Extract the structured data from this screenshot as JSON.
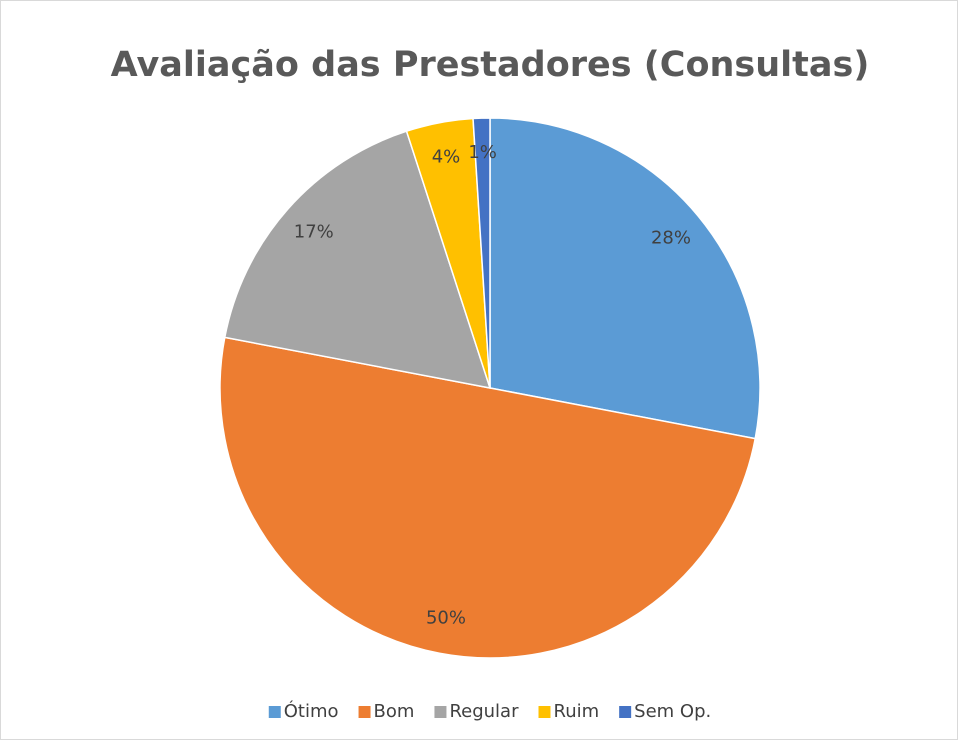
{
  "chart_data": {
    "type": "pie",
    "title": "Avaliação das Prestadores (Consultas)",
    "categories": [
      "Ótimo",
      "Bom",
      "Regular",
      "Ruim",
      "Sem Op."
    ],
    "values": [
      28,
      50,
      17,
      4,
      1
    ],
    "value_labels": [
      "28%",
      "50%",
      "17%",
      "4%",
      "1%"
    ],
    "colors": [
      "#5b9bd5",
      "#ed7d31",
      "#a5a5a5",
      "#ffc000",
      "#4472c4"
    ],
    "legend": "bottom"
  }
}
